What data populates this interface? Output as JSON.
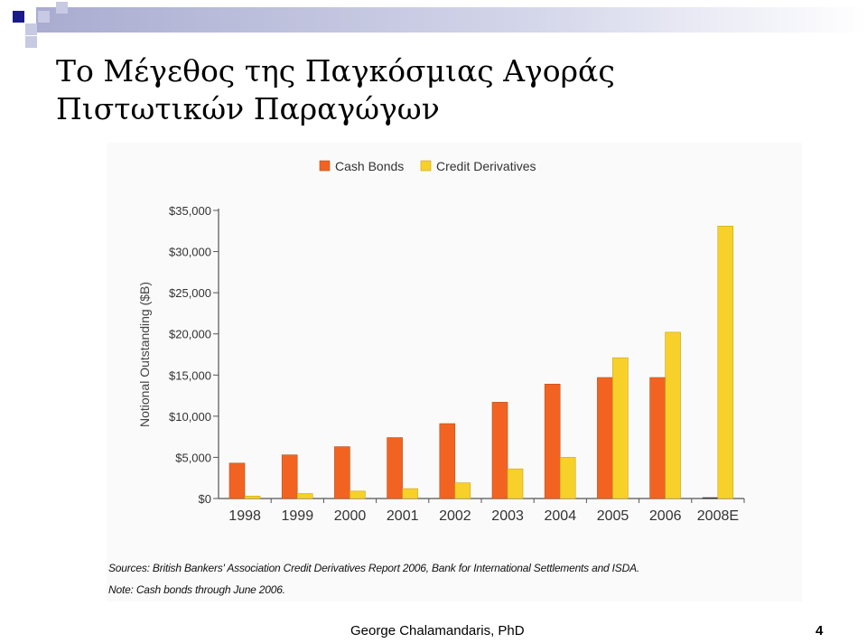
{
  "slide": {
    "title_line1": "Το Μέγεθος της Παγκόσμιας Αγοράς",
    "title_line2": "Πιστωτικών Παραγώγων",
    "sources": "Sources: British Bankers' Association Credit Derivatives Report 2006, Bank for International Settlements and ISDA.",
    "note": "Note: Cash bonds through June 2006.",
    "author": "George Chalamandaris, PhD",
    "page_number": "4"
  },
  "colors": {
    "cash_bonds": "#f26322",
    "credit_derivatives": "#f7d02a",
    "bar_stroke": "#b8501a",
    "bar_stroke_yellow": "#c9a514"
  },
  "chart_data": {
    "type": "bar",
    "categories": [
      "1998",
      "1999",
      "2000",
      "2001",
      "2002",
      "2003",
      "2004",
      "2005",
      "2006",
      "2008E"
    ],
    "series": [
      {
        "name": "Cash Bonds",
        "values": [
          4300,
          5300,
          6300,
          7400,
          9100,
          11700,
          13900,
          14700,
          14700,
          null
        ]
      },
      {
        "name": "Credit Derivatives",
        "values": [
          300,
          600,
          900,
          1200,
          1900,
          3600,
          5000,
          17100,
          20200,
          33100
        ]
      }
    ],
    "ylabel": "Notional Outstanding ($B)",
    "ylim": [
      0,
      35000
    ],
    "yticks": [
      {
        "value": 0,
        "label": "$0"
      },
      {
        "value": 5000,
        "label": "$5,000"
      },
      {
        "value": 10000,
        "label": "$10,000"
      },
      {
        "value": 15000,
        "label": "$15,000"
      },
      {
        "value": 20000,
        "label": "$20,000"
      },
      {
        "value": 25000,
        "label": "$25,000"
      },
      {
        "value": 30000,
        "label": "$30,000"
      },
      {
        "value": 35000,
        "label": "$35,000"
      }
    ],
    "legend_position": "top",
    "grid": false
  }
}
